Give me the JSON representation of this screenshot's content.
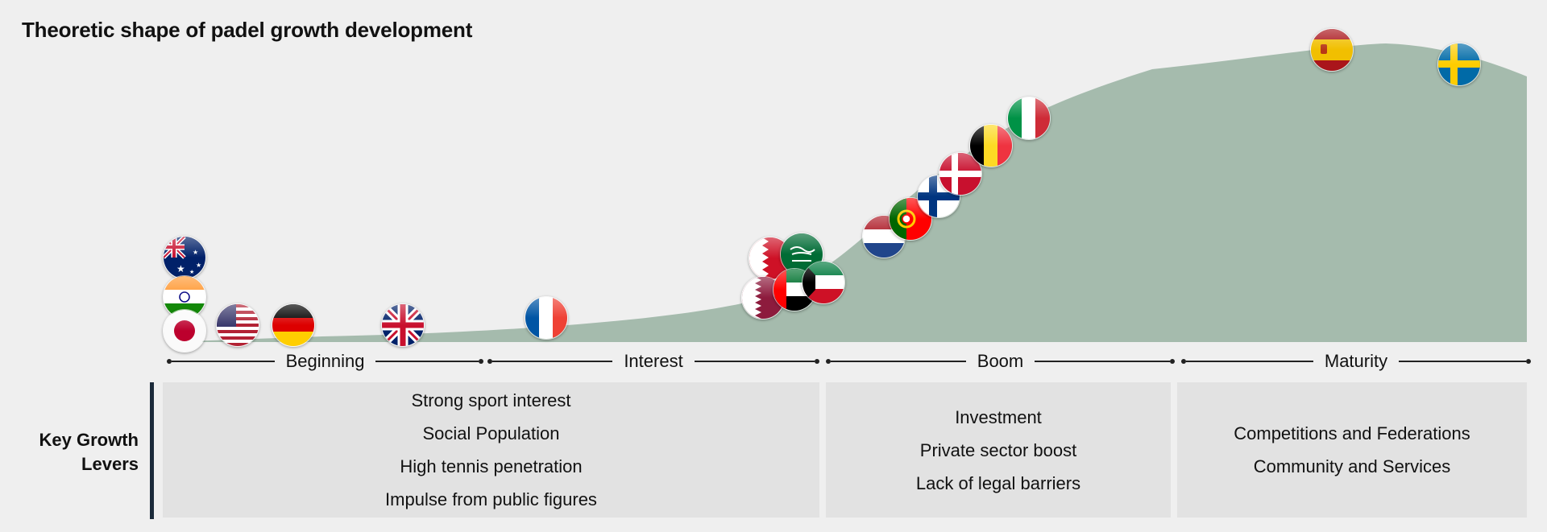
{
  "title": "Theoretic shape of padel growth development",
  "stages": [
    "Beginning",
    "Interest",
    "Boom",
    "Maturity"
  ],
  "key_growth_levers_label": "Key Growth Levers",
  "levers": {
    "beginning_interest": [
      "Strong sport interest",
      "Social Population",
      "High tennis penetration",
      "Impulse from public figures"
    ],
    "boom": [
      "Investment",
      "Private sector boost",
      "Lack of legal barriers"
    ],
    "maturity": [
      "Competitions and Federations",
      "Community and Services"
    ]
  },
  "colors": {
    "background": "#efefef",
    "curve_fill": "#a5bbad",
    "box_fill": "#e2e2e2",
    "accent_bar": "#1b2a3a"
  },
  "flags": [
    "australia",
    "india",
    "japan",
    "usa",
    "germany",
    "united-kingdom",
    "france",
    "bahrain",
    "saudi-arabia",
    "qatar",
    "uae",
    "kuwait",
    "netherlands",
    "portugal",
    "finland",
    "denmark",
    "belgium",
    "italy",
    "spain",
    "sweden"
  ]
}
